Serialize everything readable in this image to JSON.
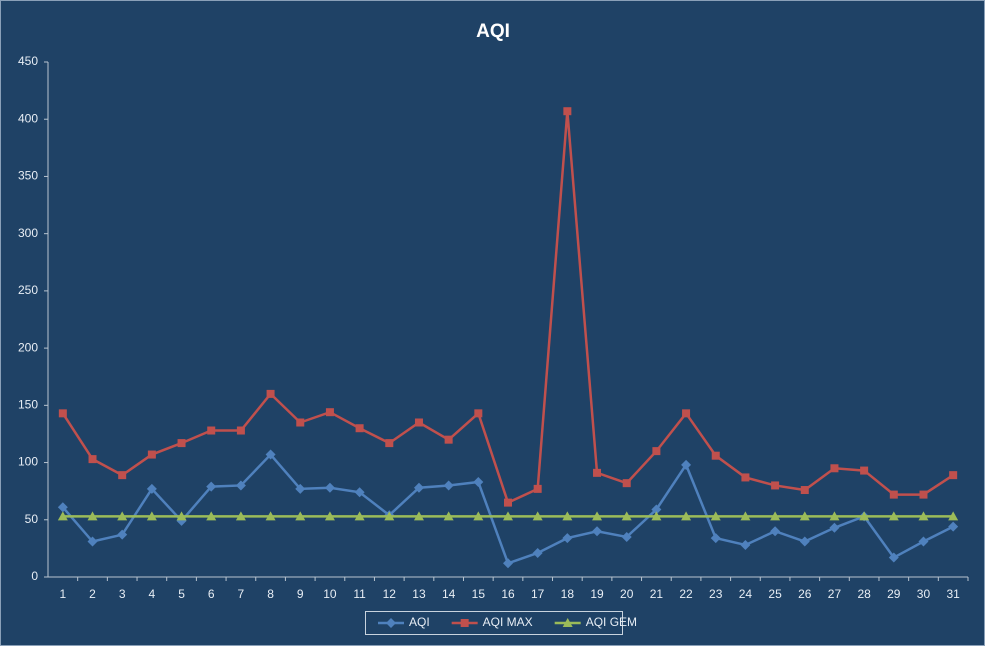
{
  "chart_data": {
    "type": "line",
    "title": "AQI",
    "categories": [
      "1",
      "2",
      "3",
      "4",
      "5",
      "6",
      "7",
      "8",
      "9",
      "10",
      "11",
      "12",
      "13",
      "14",
      "15",
      "16",
      "17",
      "18",
      "19",
      "20",
      "21",
      "22",
      "23",
      "24",
      "25",
      "26",
      "27",
      "28",
      "29",
      "30",
      "31"
    ],
    "series": [
      {
        "name": "AQI",
        "color": "#4f81bd",
        "marker": "diamond",
        "values": [
          61,
          31,
          37,
          77,
          49,
          79,
          80,
          107,
          77,
          78,
          74,
          54,
          78,
          80,
          83,
          12,
          21,
          34,
          40,
          35,
          59,
          98,
          34,
          28,
          40,
          31,
          43,
          53,
          17,
          31,
          44
        ]
      },
      {
        "name": "AQI MAX",
        "color": "#c0504d",
        "marker": "square",
        "values": [
          143,
          103,
          89,
          107,
          117,
          128,
          128,
          160,
          135,
          144,
          130,
          117,
          135,
          120,
          143,
          65,
          77,
          407,
          91,
          82,
          110,
          143,
          106,
          87,
          80,
          76,
          95,
          93,
          72,
          72,
          89
        ]
      },
      {
        "name": "AQI GEM",
        "color": "#9bbb59",
        "marker": "triangle",
        "values": [
          53,
          53,
          53,
          53,
          53,
          53,
          53,
          53,
          53,
          53,
          53,
          53,
          53,
          53,
          53,
          53,
          53,
          53,
          53,
          53,
          53,
          53,
          53,
          53,
          53,
          53,
          53,
          53,
          53,
          53,
          53
        ]
      }
    ],
    "ylim": [
      0,
      450
    ],
    "yticks": [
      0,
      50,
      100,
      150,
      200,
      250,
      300,
      350,
      400,
      450
    ],
    "grid": false,
    "legend": "bottom"
  }
}
